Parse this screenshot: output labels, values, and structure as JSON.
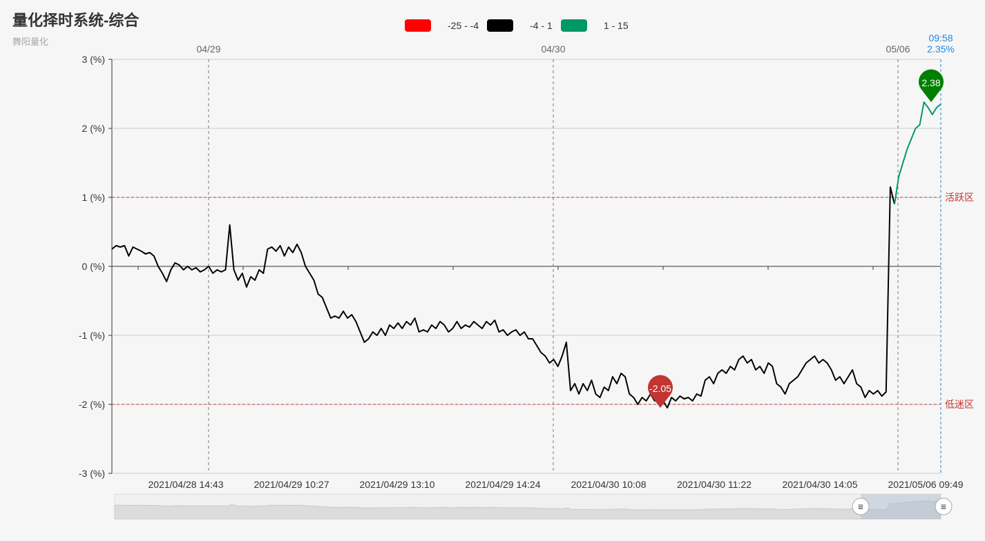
{
  "header": {
    "title": "量化择时系统-综合",
    "subtitle": "舞阳量化"
  },
  "legend": [
    {
      "label": "-25 - -4",
      "color": "#ff0000"
    },
    {
      "label": "-4 - 1",
      "color": "#000000"
    },
    {
      "label": "1 - 15",
      "color": "#009966"
    }
  ],
  "chart_data": {
    "type": "line",
    "ylim": [
      -3,
      3
    ],
    "y_tick_labels": [
      "3 (%)",
      "2 (%)",
      "1 (%)",
      "0 (%)",
      "-1 (%)",
      "-2 (%)",
      "-3 (%)"
    ],
    "x_tick_labels": [
      "2021/04/28 14:43",
      "2021/04/29 10:27",
      "2021/04/29 13:10",
      "2021/04/29 14:24",
      "2021/04/30 10:08",
      "2021/04/30 11:22",
      "2021/04/30 14:05",
      "2021/05/06 09:49"
    ],
    "day_labels": [
      "04/29",
      "04/30",
      "05/06"
    ],
    "mark_lines": [
      {
        "value": 1,
        "label": "活跃区"
      },
      {
        "value": -2,
        "label": "低迷区"
      }
    ],
    "mark_points": [
      {
        "label": "-2.05",
        "value": -2.05,
        "color": "#c23531"
      },
      {
        "label": "2.38",
        "value": 2.38,
        "color": "#008000"
      }
    ],
    "cursor": {
      "time": "09:58",
      "value": "2.35%"
    },
    "series": [
      {
        "values": [
          0.25,
          0.3,
          0.28,
          0.3,
          0.15,
          0.28,
          0.25,
          0.22,
          0.18,
          0.2,
          0.15,
          0.0,
          -0.1,
          -0.22,
          -0.05,
          0.05,
          0.02,
          -0.05,
          0.0,
          -0.05,
          -0.02,
          -0.08,
          -0.05,
          0.0,
          -0.1,
          -0.05,
          -0.08,
          -0.05,
          0.6,
          -0.05,
          -0.2,
          -0.1,
          -0.3,
          -0.15,
          -0.2,
          -0.05,
          -0.1,
          0.25,
          0.28,
          0.22,
          0.3,
          0.15,
          0.28,
          0.2,
          0.32,
          0.2,
          0.0,
          -0.1,
          -0.2,
          -0.4,
          -0.45,
          -0.6,
          -0.75,
          -0.72,
          -0.75,
          -0.65,
          -0.75,
          -0.7,
          -0.8,
          -0.95,
          -1.1,
          -1.05,
          -0.95,
          -1.0,
          -0.9,
          -1.0,
          -0.85,
          -0.9,
          -0.82,
          -0.9,
          -0.8,
          -0.85,
          -0.75,
          -0.95,
          -0.92,
          -0.95,
          -0.85,
          -0.9,
          -0.8,
          -0.85,
          -0.95,
          -0.9,
          -0.8,
          -0.9,
          -0.85,
          -0.88,
          -0.8,
          -0.85,
          -0.9,
          -0.8,
          -0.85,
          -0.78,
          -0.95,
          -0.92,
          -1.0,
          -0.95,
          -0.92,
          -1.0,
          -0.95,
          -1.05,
          -1.05,
          -1.15,
          -1.25,
          -1.3,
          -1.4,
          -1.35,
          -1.45,
          -1.3,
          -1.1,
          -1.8,
          -1.7,
          -1.85,
          -1.7,
          -1.8,
          -1.65,
          -1.85,
          -1.9,
          -1.75,
          -1.8,
          -1.6,
          -1.7,
          -1.55,
          -1.6,
          -1.85,
          -1.9,
          -2.0,
          -1.9,
          -1.95,
          -1.85,
          -1.95,
          -1.9,
          -1.95,
          -2.05,
          -1.9,
          -1.95,
          -1.88,
          -1.92,
          -1.9,
          -1.95,
          -1.85,
          -1.88,
          -1.65,
          -1.6,
          -1.7,
          -1.55,
          -1.5,
          -1.55,
          -1.45,
          -1.5,
          -1.35,
          -1.3,
          -1.4,
          -1.35,
          -1.5,
          -1.45,
          -1.55,
          -1.4,
          -1.45,
          -1.7,
          -1.75,
          -1.85,
          -1.7,
          -1.65,
          -1.6,
          -1.5,
          -1.4,
          -1.35,
          -1.3,
          -1.4,
          -1.35,
          -1.4,
          -1.5,
          -1.65,
          -1.6,
          -1.7,
          -1.6,
          -1.5,
          -1.7,
          -1.75,
          -1.9,
          -1.8,
          -1.85,
          -1.8,
          -1.88,
          -1.82,
          1.15,
          0.9,
          1.3,
          1.5,
          1.7,
          1.85,
          2.0,
          2.05,
          2.38,
          2.3,
          2.2,
          2.3,
          2.35
        ]
      }
    ]
  },
  "zoom": {
    "left_handle": "≡",
    "right_handle": "≡"
  }
}
